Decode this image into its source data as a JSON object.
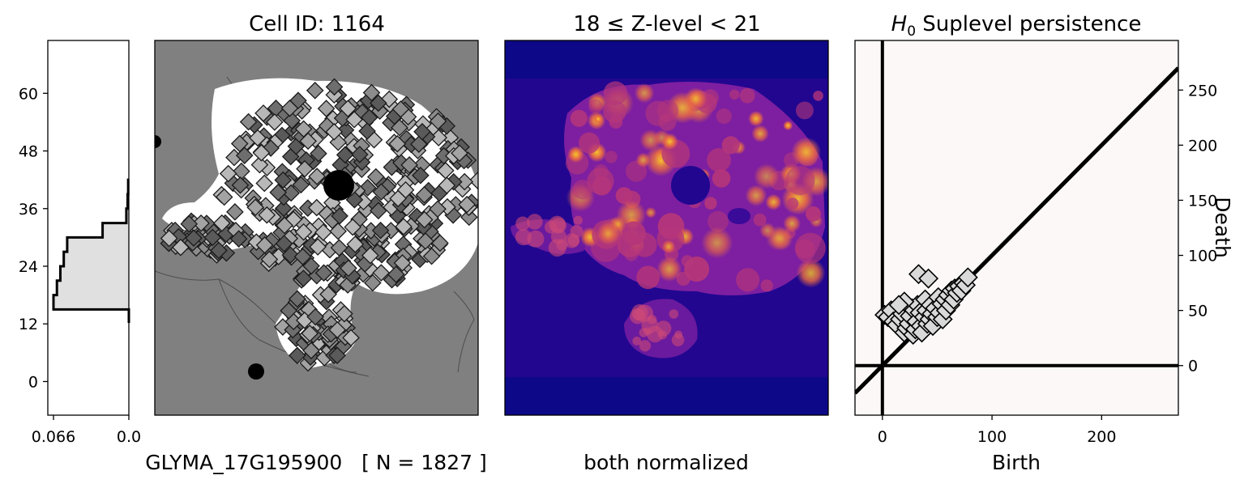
{
  "histogram": {
    "y_ticks": [
      "0",
      "12",
      "24",
      "36",
      "48",
      "60"
    ],
    "x_ticks": [
      "0.066",
      "0.0"
    ],
    "ylim": [
      -7,
      71
    ],
    "xlim_reversed": [
      0.0,
      0.066
    ],
    "steps": [
      {
        "z": 12.2,
        "freq": 0.0
      },
      {
        "z": 15.0,
        "freq": 0.066
      },
      {
        "z": 18.0,
        "freq": 0.063
      },
      {
        "z": 21.0,
        "freq": 0.06
      },
      {
        "z": 24.0,
        "freq": 0.057
      },
      {
        "z": 27.0,
        "freq": 0.054
      },
      {
        "z": 30.0,
        "freq": 0.023
      },
      {
        "z": 33.0,
        "freq": 0.0022
      },
      {
        "z": 36.0,
        "freq": 0.0011
      },
      {
        "z": 39.0,
        "freq": 0.0006
      },
      {
        "z": 42.0,
        "freq": 0.0
      }
    ],
    "fill_color": "#e0e0e0",
    "line_color": "#000000"
  },
  "cell_panel": {
    "title": "Cell ID: 1164",
    "background_color": "#808080",
    "cell_color": "#ffffff",
    "marker_fill": "#8c8c8c",
    "marker_edge": "#1a1a1a"
  },
  "kde_panel": {
    "title": "18 ≤  Z-level  < 21",
    "background_color": "#0d0887",
    "colormap": "plasma"
  },
  "persistence_panel": {
    "title_prefix": "H",
    "title_sub": "0",
    "title_rest": " Suplevel persistence",
    "xlabel": "Birth",
    "ylabel": "Death",
    "x_ticks": [
      0,
      100,
      200
    ],
    "y_ticks": [
      0,
      50,
      100,
      150,
      200,
      250
    ],
    "xlim": [
      -25,
      270
    ],
    "ylim": [
      -45,
      295
    ],
    "background_color": "#fcf8f7",
    "marker_fill": "#d9d9d9",
    "points": [
      [
        2,
        46
      ],
      [
        5,
        44
      ],
      [
        8,
        50
      ],
      [
        10,
        40
      ],
      [
        13,
        37
      ],
      [
        16,
        42
      ],
      [
        18,
        47
      ],
      [
        20,
        30
      ],
      [
        22,
        34
      ],
      [
        24,
        38
      ],
      [
        25,
        45
      ],
      [
        27,
        52
      ],
      [
        28,
        28
      ],
      [
        30,
        33
      ],
      [
        31,
        40
      ],
      [
        32,
        55
      ],
      [
        33,
        83
      ],
      [
        34,
        48
      ],
      [
        35,
        36
      ],
      [
        36,
        30
      ],
      [
        38,
        44
      ],
      [
        39,
        60
      ],
      [
        40,
        50
      ],
      [
        41,
        38
      ],
      [
        42,
        79
      ],
      [
        43,
        42
      ],
      [
        44,
        55
      ],
      [
        45,
        47
      ],
      [
        46,
        36
      ],
      [
        48,
        52
      ],
      [
        50,
        44
      ],
      [
        51,
        62
      ],
      [
        52,
        48
      ],
      [
        54,
        56
      ],
      [
        55,
        42
      ],
      [
        57,
        60
      ],
      [
        58,
        50
      ],
      [
        60,
        64
      ],
      [
        62,
        55
      ],
      [
        63,
        68
      ],
      [
        65,
        60
      ],
      [
        66,
        70
      ],
      [
        68,
        66
      ],
      [
        70,
        72
      ],
      [
        72,
        68
      ],
      [
        74,
        75
      ],
      [
        76,
        73
      ],
      [
        78,
        80
      ],
      [
        20,
        58
      ],
      [
        15,
        55
      ]
    ]
  },
  "footer": {
    "gene_label": "GLYMA_17G195900   [ N = 1827 ]",
    "norm_label": "both normalized"
  }
}
